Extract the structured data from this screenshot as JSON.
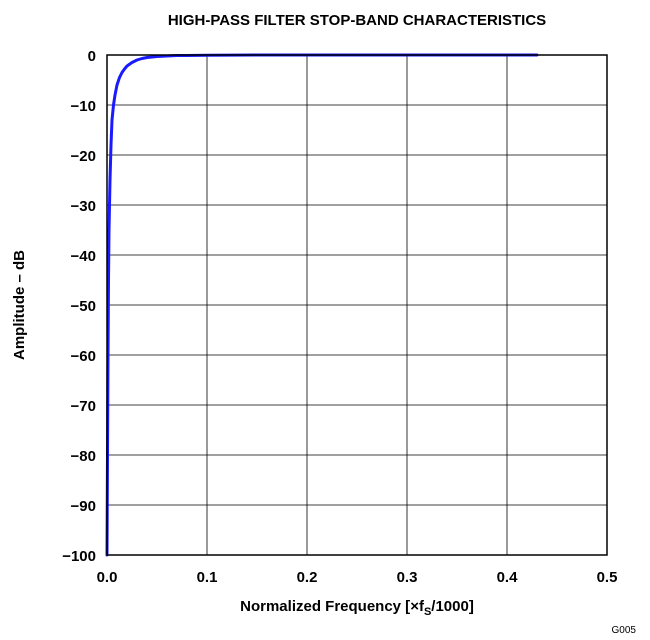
{
  "chart_data": {
    "type": "line",
    "title": "HIGH-PASS FILTER STOP-BAND CHARACTERISTICS",
    "xlabel": {
      "prefix": "Normalized Frequency [",
      "symbol": "×f",
      "subscript": "S",
      "suffix": "/1000]"
    },
    "ylabel": "Amplitude – dB",
    "xlim": [
      0,
      0.5
    ],
    "ylim": [
      -100,
      0
    ],
    "x_ticks": [
      "0.0",
      "0.1",
      "0.2",
      "0.3",
      "0.4",
      "0.5"
    ],
    "y_ticks": [
      "0",
      "−10",
      "−20",
      "−30",
      "−40",
      "−50",
      "−60",
      "−70",
      "−80",
      "−90",
      "−100"
    ],
    "grid": true,
    "line_color": "#1a1aff",
    "series": [
      {
        "x": [
          0.0,
          0.0005,
          0.001,
          0.0015,
          0.002,
          0.003,
          0.004,
          0.005,
          0.0065,
          0.008,
          0.01,
          0.0125,
          0.015,
          0.0175,
          0.02,
          0.025,
          0.03,
          0.035,
          0.04,
          0.05,
          0.06,
          0.07,
          0.08,
          0.1,
          0.15,
          0.2,
          0.25,
          0.3,
          0.35,
          0.4,
          0.43
        ],
        "y": [
          -100,
          -80,
          -60,
          -45,
          -35,
          -25,
          -18,
          -13,
          -10,
          -8,
          -6,
          -4.5,
          -3.5,
          -2.8,
          -2.2,
          -1.5,
          -1.0,
          -0.7,
          -0.5,
          -0.3,
          -0.2,
          -0.1,
          -0.1,
          -0.05,
          0,
          0,
          0,
          0,
          0,
          0,
          0
        ]
      }
    ]
  },
  "figure_code": "G005"
}
